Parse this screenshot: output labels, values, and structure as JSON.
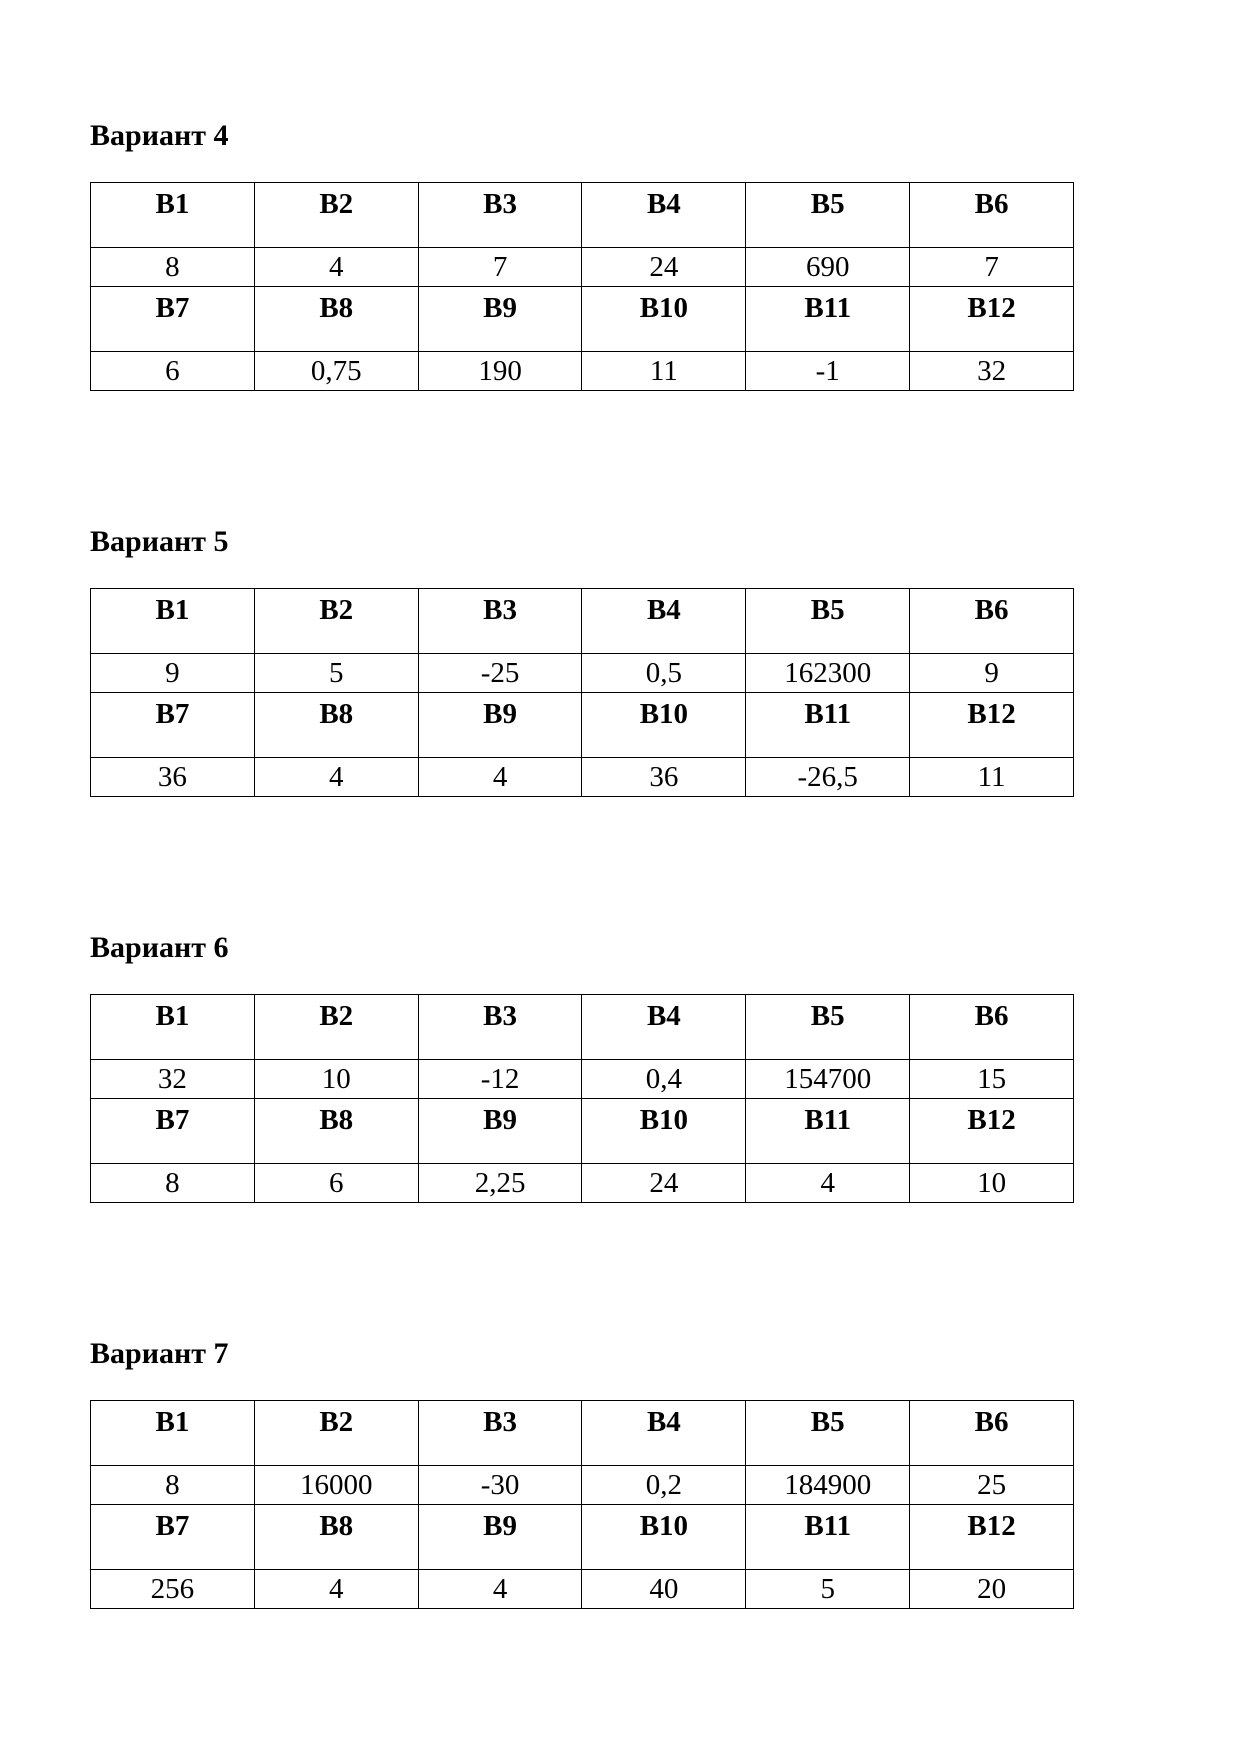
{
  "variants": [
    {
      "title": "Вариант 4",
      "headers1": [
        "B1",
        "B2",
        "B3",
        "B4",
        "B5",
        "B6"
      ],
      "values1": [
        "8",
        "4",
        "7",
        "24",
        "690",
        "7"
      ],
      "headers2": [
        "B7",
        "B8",
        "B9",
        "B10",
        "B11",
        "B12"
      ],
      "values2": [
        "6",
        "0,75",
        "190",
        "11",
        "-1",
        "32"
      ]
    },
    {
      "title": "Вариант 5",
      "headers1": [
        "B1",
        "B2",
        "B3",
        "B4",
        "B5",
        "B6"
      ],
      "values1": [
        "9",
        "5",
        "-25",
        "0,5",
        "162300",
        "9"
      ],
      "headers2": [
        "B7",
        "B8",
        "B9",
        "B10",
        "B11",
        "B12"
      ],
      "values2": [
        "36",
        "4",
        "4",
        "36",
        "-26,5",
        "11"
      ]
    },
    {
      "title": "Вариант 6",
      "headers1": [
        "B1",
        "B2",
        "B3",
        "B4",
        "B5",
        "B6"
      ],
      "values1": [
        "32",
        "10",
        "-12",
        "0,4",
        "154700",
        "15"
      ],
      "headers2": [
        "B7",
        "B8",
        "B9",
        "B10",
        "B11",
        "B12"
      ],
      "values2": [
        "8",
        "6",
        "2,25",
        "24",
        "4",
        "10"
      ]
    },
    {
      "title": "Вариант 7",
      "headers1": [
        "B1",
        "B2",
        "B3",
        "B4",
        "B5",
        "B6"
      ],
      "values1": [
        "8",
        "16000",
        "-30",
        "0,2",
        "184900",
        "25"
      ],
      "headers2": [
        "B7",
        "B8",
        "B9",
        "B10",
        "B11",
        "B12"
      ],
      "values2": [
        "256",
        "4",
        "4",
        "40",
        "5",
        "20"
      ]
    }
  ]
}
